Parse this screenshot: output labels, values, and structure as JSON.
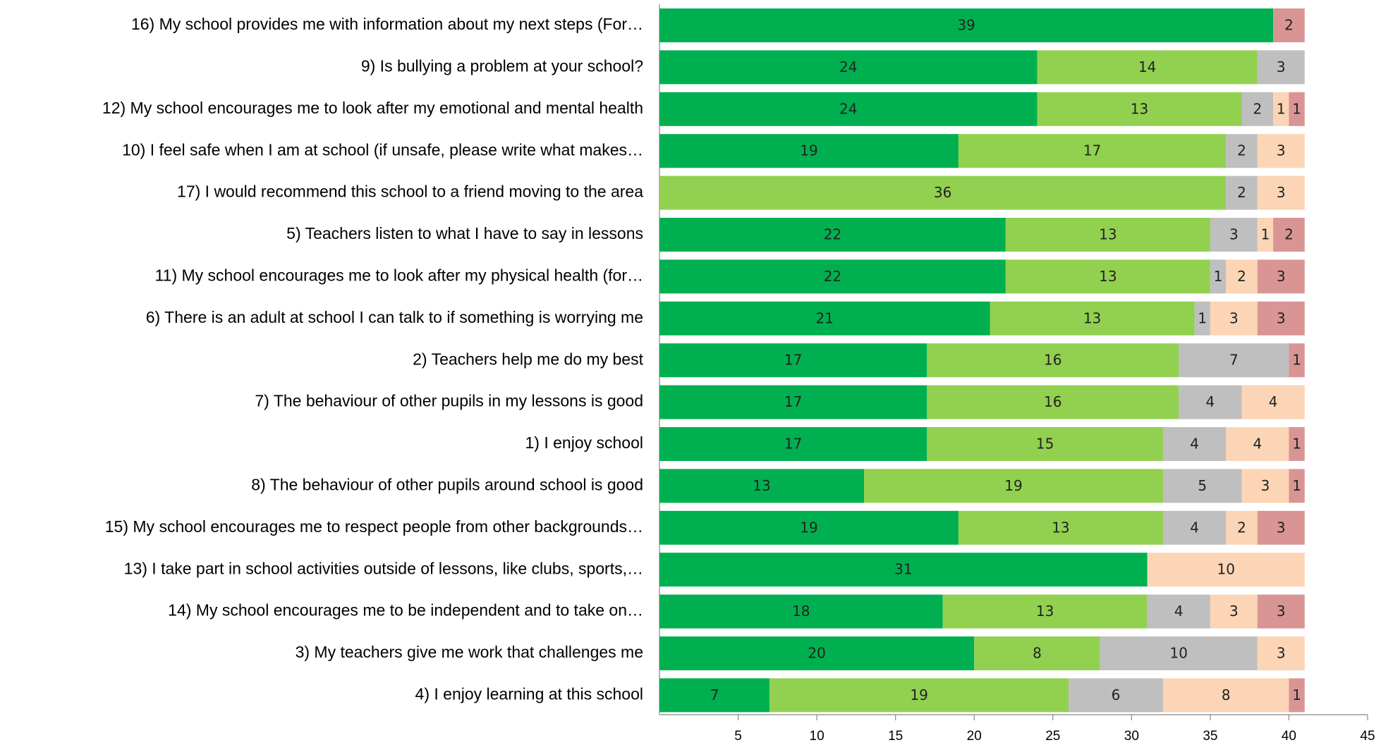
{
  "chart_data": {
    "type": "stacked_barh",
    "categories": [
      "16) My school provides me with information about my next steps (For…",
      "9) Is bullying a problem at your school?",
      "12) My school encourages me to look after my emotional and mental health",
      "10) I feel safe when I am at school (if unsafe, please write what makes…",
      "17) I would recommend this school to a friend moving to the area",
      "5) Teachers listen to what I have to say in lessons",
      "11) My school encourages me to look after my physical health (for…",
      "6) There is an adult at school I can talk to if something is worrying me",
      "2) Teachers help me do my best",
      "7) The behaviour of other pupils in my lessons is good",
      "1) I enjoy school",
      "8) The behaviour of other pupils around school is good",
      "15) My school encourages me to respect people from other backgrounds…",
      "13) I take part in school activities outside of lessons, like clubs, sports,…",
      "14) My school encourages me to be independent and to take on…",
      "3) My teachers give me work that challenges me",
      "4) I enjoy learning at this school"
    ],
    "series": [
      {
        "color": "#00b050",
        "values": [
          39,
          24,
          24,
          19,
          null,
          22,
          22,
          21,
          17,
          17,
          17,
          13,
          19,
          31,
          18,
          20,
          7
        ]
      },
      {
        "color": "#92d050",
        "values": [
          null,
          14,
          13,
          17,
          36,
          13,
          13,
          13,
          16,
          16,
          15,
          19,
          13,
          null,
          13,
          8,
          19
        ]
      },
      {
        "color": "#bfbfbf",
        "values": [
          null,
          3,
          2,
          2,
          2,
          3,
          1,
          1,
          7,
          4,
          4,
          5,
          4,
          null,
          4,
          10,
          6
        ]
      },
      {
        "color": "#fbd5b5",
        "values": [
          null,
          null,
          1,
          3,
          3,
          1,
          2,
          3,
          null,
          4,
          4,
          3,
          2,
          10,
          3,
          3,
          8
        ]
      },
      {
        "color": "#d99594",
        "values": [
          2,
          null,
          1,
          null,
          null,
          2,
          3,
          3,
          1,
          null,
          1,
          1,
          3,
          null,
          3,
          null,
          1
        ]
      }
    ],
    "xlim": [
      0,
      45
    ],
    "xticks": [
      5,
      10,
      15,
      20,
      25,
      30,
      35,
      40,
      45
    ]
  }
}
